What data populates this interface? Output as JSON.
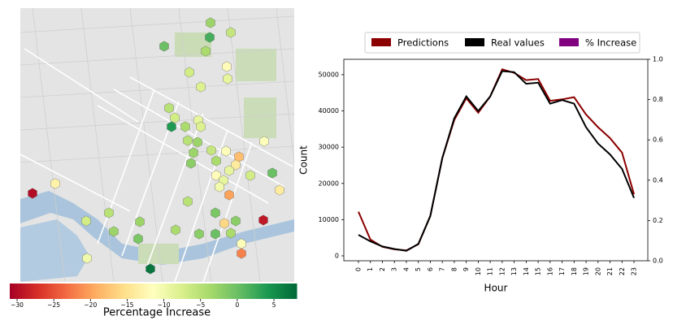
{
  "chart_data": [
    {
      "type": "hexbin",
      "values": [
        -3,
        -6,
        2,
        0,
        -4,
        -12,
        -7,
        -9,
        -8,
        -5,
        -7,
        -9,
        4,
        -4,
        -8,
        -5,
        -3,
        -11,
        -6,
        -11,
        -18,
        -3,
        -2,
        -4,
        -14,
        -9,
        -7,
        -12,
        -9,
        0,
        -10,
        -30,
        -13,
        -20,
        -14,
        -5,
        -1,
        -29,
        -2,
        -3,
        -7,
        -5,
        -16,
        -4,
        -3,
        -2,
        0,
        -4,
        -11,
        -22,
        -1,
        -10,
        7
      ],
      "colormap": "RdYlGn",
      "clim": [
        -31,
        8.1
      ],
      "cticks": [
        {
          "value": -30,
          "label": "−30"
        },
        {
          "value": -25,
          "label": "−25"
        },
        {
          "value": -20,
          "label": "−20"
        },
        {
          "value": -15,
          "label": "−15"
        },
        {
          "value": -10,
          "label": "−10"
        },
        {
          "value": -5,
          "label": "−5"
        },
        0,
        5
      ],
      "clabel": "Percentage Increase"
    },
    {
      "type": "line",
      "xlabel": "Hour",
      "ylabel": "Count",
      "categories": [
        "0",
        "1",
        "2",
        "3",
        "4",
        "5",
        "6",
        "7",
        "8",
        "9",
        "10",
        "11",
        "12",
        "13",
        "14",
        "15",
        "16",
        "17",
        "18",
        "19",
        "20",
        "21",
        "22",
        "23"
      ],
      "series": [
        {
          "name": "Predictions",
          "color": "#8b0000",
          "values": [
            12200,
            4500,
            2500,
            1800,
            1500,
            3200,
            11000,
            27000,
            37500,
            43500,
            39500,
            44000,
            51500,
            50500,
            48500,
            48800,
            42800,
            43200,
            43800,
            39000,
            35500,
            32500,
            28500,
            17000
          ]
        },
        {
          "name": "Real values",
          "color": "#000000",
          "values": [
            5800,
            4000,
            2600,
            1900,
            1400,
            3300,
            11000,
            27000,
            38000,
            44000,
            40000,
            44000,
            51000,
            50700,
            47500,
            47800,
            42000,
            43000,
            42000,
            35500,
            31000,
            28000,
            24000,
            16000
          ]
        },
        {
          "name": "% Increase",
          "color": "#800080",
          "axis": "y2",
          "values": [
            null,
            null,
            null,
            null,
            null,
            null,
            null,
            null,
            null,
            null,
            null,
            null,
            null,
            null,
            null,
            null,
            null,
            null,
            null,
            null,
            null,
            null,
            null,
            null
          ]
        }
      ],
      "ylim": [
        -1350,
        54250
      ],
      "yticks": [
        0,
        10000,
        20000,
        30000,
        40000,
        50000
      ],
      "y2lim": [
        0,
        1
      ],
      "y2ticks": [
        {
          "value": 0,
          "label": "0.0"
        },
        {
          "value": 0.2,
          "label": "0.2"
        },
        {
          "value": 0.4,
          "label": "0.4"
        },
        {
          "value": 0.6,
          "label": "0.6"
        },
        {
          "value": 0.8,
          "label": "0.8"
        },
        {
          "value": 1,
          "label": "1.0"
        }
      ]
    }
  ]
}
